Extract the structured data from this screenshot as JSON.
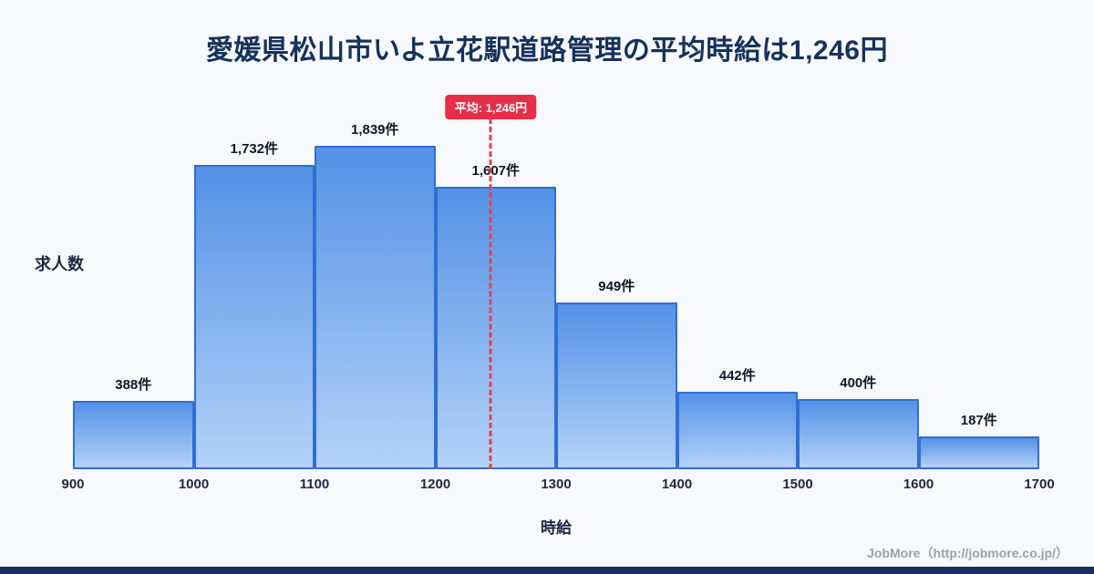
{
  "page": {
    "footer": "JobMore（http://jobmore.co.jp/）"
  },
  "chart_data": {
    "type": "bar",
    "title": "愛媛県松山市いよ立花駅道路管理の平均時給は1,246円",
    "xlabel": "時給",
    "ylabel": "求人数",
    "bins": [
      900,
      1000,
      1100,
      1200,
      1300,
      1400,
      1500,
      1600,
      1700
    ],
    "x_tick_labels": [
      "900",
      "1000",
      "1100",
      "1200",
      "1300",
      "1400",
      "1500",
      "1600",
      "1700"
    ],
    "values": [
      388,
      1732,
      1839,
      1607,
      949,
      442,
      400,
      187
    ],
    "bar_labels": [
      "388件",
      "1,732件",
      "1,839件",
      "1,607件",
      "949件",
      "442件",
      "400件",
      "187件"
    ],
    "average": {
      "value": 1246,
      "label": "平均: 1,246円"
    },
    "xlim": [
      900,
      1700
    ],
    "ylim": [
      0,
      1839
    ],
    "grid": false,
    "legend": "none",
    "colors": {
      "background": "#f7f9fc",
      "title": "#16325c",
      "bar_fill_top": "#5491e6",
      "bar_fill_bottom": "#b3d2f8",
      "bar_border": "#2f6fd4",
      "average_line": "#e8404e",
      "badge_bg": "#e62e48",
      "bottom_bar": "#16325c"
    }
  }
}
